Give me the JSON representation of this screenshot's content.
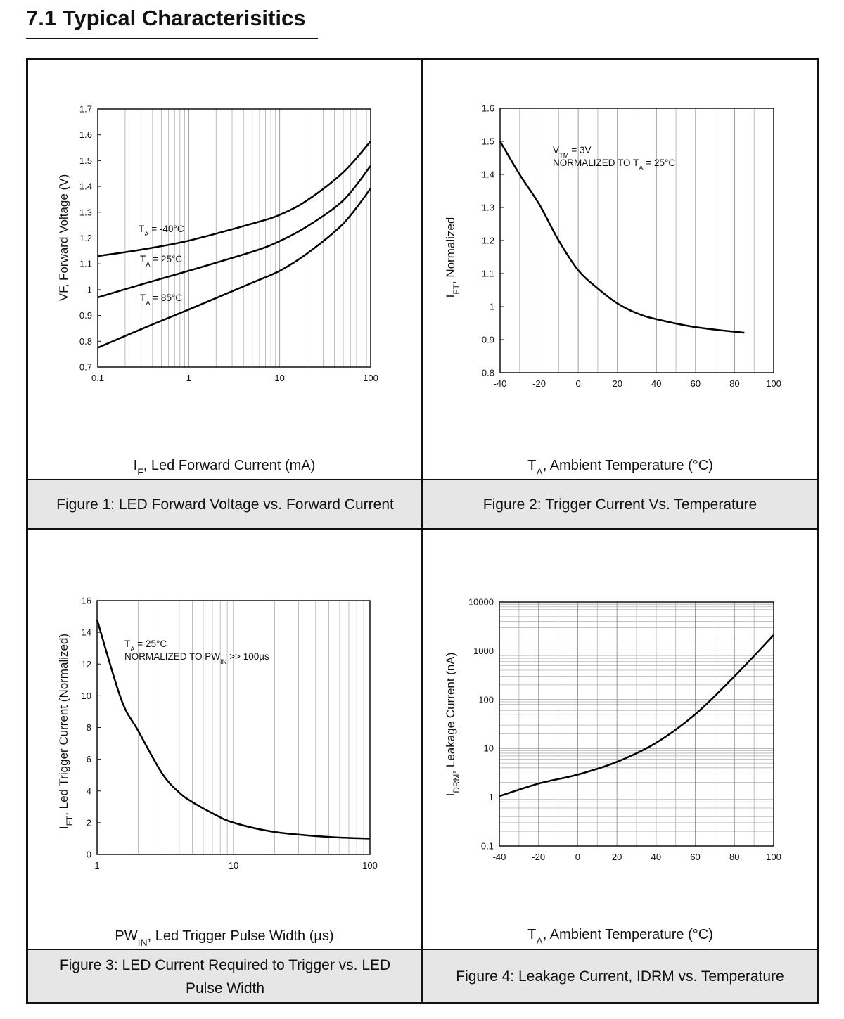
{
  "title": "7.1 Typical Characterisitics",
  "chart_data": [
    {
      "type": "line",
      "caption": "Figure 1: LED Forward Voltage vs. Forward Current",
      "x_label": [
        {
          "text": "I"
        },
        {
          "text": "F",
          "sub": true
        },
        {
          "text": ", Led Forward Current (mA)"
        }
      ],
      "y_label": [
        {
          "text": "VF, Forward Voltage (V)"
        }
      ],
      "x_log": true,
      "y_log": false,
      "x_grid": true,
      "y_grid": false,
      "color": "#000000",
      "xlim": [
        0.1,
        100
      ],
      "ylim": [
        0.7,
        1.7
      ],
      "xticks": [
        0.1,
        1,
        10,
        100
      ],
      "yticks": [
        0.7,
        0.8,
        0.9,
        1.0,
        1.1,
        1.2,
        1.3,
        1.4,
        1.5,
        1.6,
        1.7
      ],
      "x": [
        0.1,
        0.3,
        1,
        5,
        10,
        20,
        50,
        100
      ],
      "series": [
        {
          "values": [
            1.13,
            1.155,
            1.19,
            1.256,
            1.29,
            1.346,
            1.455,
            1.575
          ]
        },
        {
          "values": [
            0.97,
            1.02,
            1.073,
            1.147,
            1.188,
            1.245,
            1.346,
            1.48
          ]
        },
        {
          "values": [
            0.775,
            0.847,
            0.923,
            1.027,
            1.073,
            1.14,
            1.256,
            1.392
          ]
        }
      ],
      "annotations": [
        [
          {
            "text": "T"
          },
          {
            "text": "A",
            "sub": true
          },
          {
            "text": " = -40°C"
          }
        ],
        [
          {
            "text": "T"
          },
          {
            "text": "A",
            "sub": true
          },
          {
            "text": " = 25°C"
          }
        ],
        [
          {
            "text": "T"
          },
          {
            "text": "A",
            "sub": true
          },
          {
            "text": " = 85°C"
          }
        ]
      ]
    },
    {
      "type": "line",
      "caption": "Figure 2: Trigger Current Vs. Temperature",
      "x_label": [
        {
          "text": "T"
        },
        {
          "text": "A",
          "sub": true
        },
        {
          "text": ", Ambient Temperature (°C)"
        }
      ],
      "y_label": [
        {
          "text": "I"
        },
        {
          "text": "FT",
          "sub": true
        },
        {
          "text": ", Normalized"
        }
      ],
      "x_log": false,
      "y_log": false,
      "x_grid": true,
      "y_grid": false,
      "color": "#000000",
      "xlim": [
        -40,
        100
      ],
      "ylim": [
        0.8,
        1.6
      ],
      "xticks": [
        -40,
        -20,
        0,
        20,
        40,
        60,
        80,
        100
      ],
      "yticks": [
        0.8,
        0.9,
        1.0,
        1.1,
        1.2,
        1.3,
        1.4,
        1.5,
        1.6
      ],
      "x": [
        -40,
        -30,
        -20,
        -10,
        0,
        10,
        20,
        30,
        40,
        60,
        85
      ],
      "series": [
        {
          "values": [
            1.5,
            1.4,
            1.31,
            1.2,
            1.11,
            1.055,
            1.01,
            0.98,
            0.962,
            0.938,
            0.921
          ]
        }
      ],
      "annotations": [
        [
          {
            "text": "V"
          },
          {
            "text": "TM",
            "sub": true
          },
          {
            "text": " = 3V"
          }
        ],
        [
          {
            "text": "NORMALIZED TO T"
          },
          {
            "text": "A",
            "sub": true
          },
          {
            "text": " = 25°C"
          }
        ]
      ]
    },
    {
      "type": "line",
      "caption": "Figure 3: LED Current Required to Trigger vs. LED Pulse Width",
      "x_label": [
        {
          "text": "PW"
        },
        {
          "text": "IN",
          "sub": true
        },
        {
          "text": ", Led Trigger Pulse Width (µs)"
        }
      ],
      "y_label": [
        {
          "text": "I"
        },
        {
          "text": "FT",
          "sub": true
        },
        {
          "text": ", Led Trigger Current (Normalized)"
        }
      ],
      "x_log": true,
      "y_log": false,
      "x_grid": true,
      "y_grid": false,
      "color": "#000000",
      "xlim": [
        1,
        100
      ],
      "ylim": [
        0,
        16
      ],
      "xticks": [
        1,
        10,
        100
      ],
      "yticks": [
        0,
        2,
        4,
        6,
        8,
        10,
        12,
        14,
        16
      ],
      "x": [
        1,
        1.5,
        2,
        3,
        4,
        5,
        7,
        10,
        20,
        50,
        100
      ],
      "series": [
        {
          "values": [
            14.8,
            9.8,
            7.8,
            5.1,
            3.9,
            3.3,
            2.6,
            2.0,
            1.42,
            1.1,
            1.0
          ]
        }
      ],
      "annotations": [
        [
          {
            "text": "T"
          },
          {
            "text": "A",
            "sub": true
          },
          {
            "text": " = 25°C"
          }
        ],
        [
          {
            "text": "NORMALIZED TO PW"
          },
          {
            "text": "IN",
            "sub": true
          },
          {
            "text": " >> 100µs"
          }
        ]
      ]
    },
    {
      "type": "line",
      "caption": "Figure 4: Leakage Current, IDRM vs. Temperature",
      "x_label": [
        {
          "text": "T"
        },
        {
          "text": "A",
          "sub": true
        },
        {
          "text": ", Ambient Temperature (°C)"
        }
      ],
      "y_label": [
        {
          "text": "I"
        },
        {
          "text": "DRM",
          "sub": true
        },
        {
          "text": ", Leakage Current (nA)"
        }
      ],
      "x_log": false,
      "y_log": true,
      "x_grid": true,
      "y_grid": true,
      "color": "#000000",
      "xlim": [
        -40,
        100
      ],
      "ylim": [
        0.1,
        10000
      ],
      "xticks": [
        -40,
        -20,
        0,
        20,
        40,
        60,
        80,
        100
      ],
      "yticks": [
        0.1,
        1,
        10,
        100,
        1000,
        10000
      ],
      "x": [
        -40,
        -20,
        0,
        20,
        40,
        60,
        80,
        100
      ],
      "series": [
        {
          "values": [
            1.05,
            1.9,
            2.9,
            5.3,
            13,
            50,
            300,
            2100
          ]
        }
      ],
      "annotations": []
    }
  ]
}
